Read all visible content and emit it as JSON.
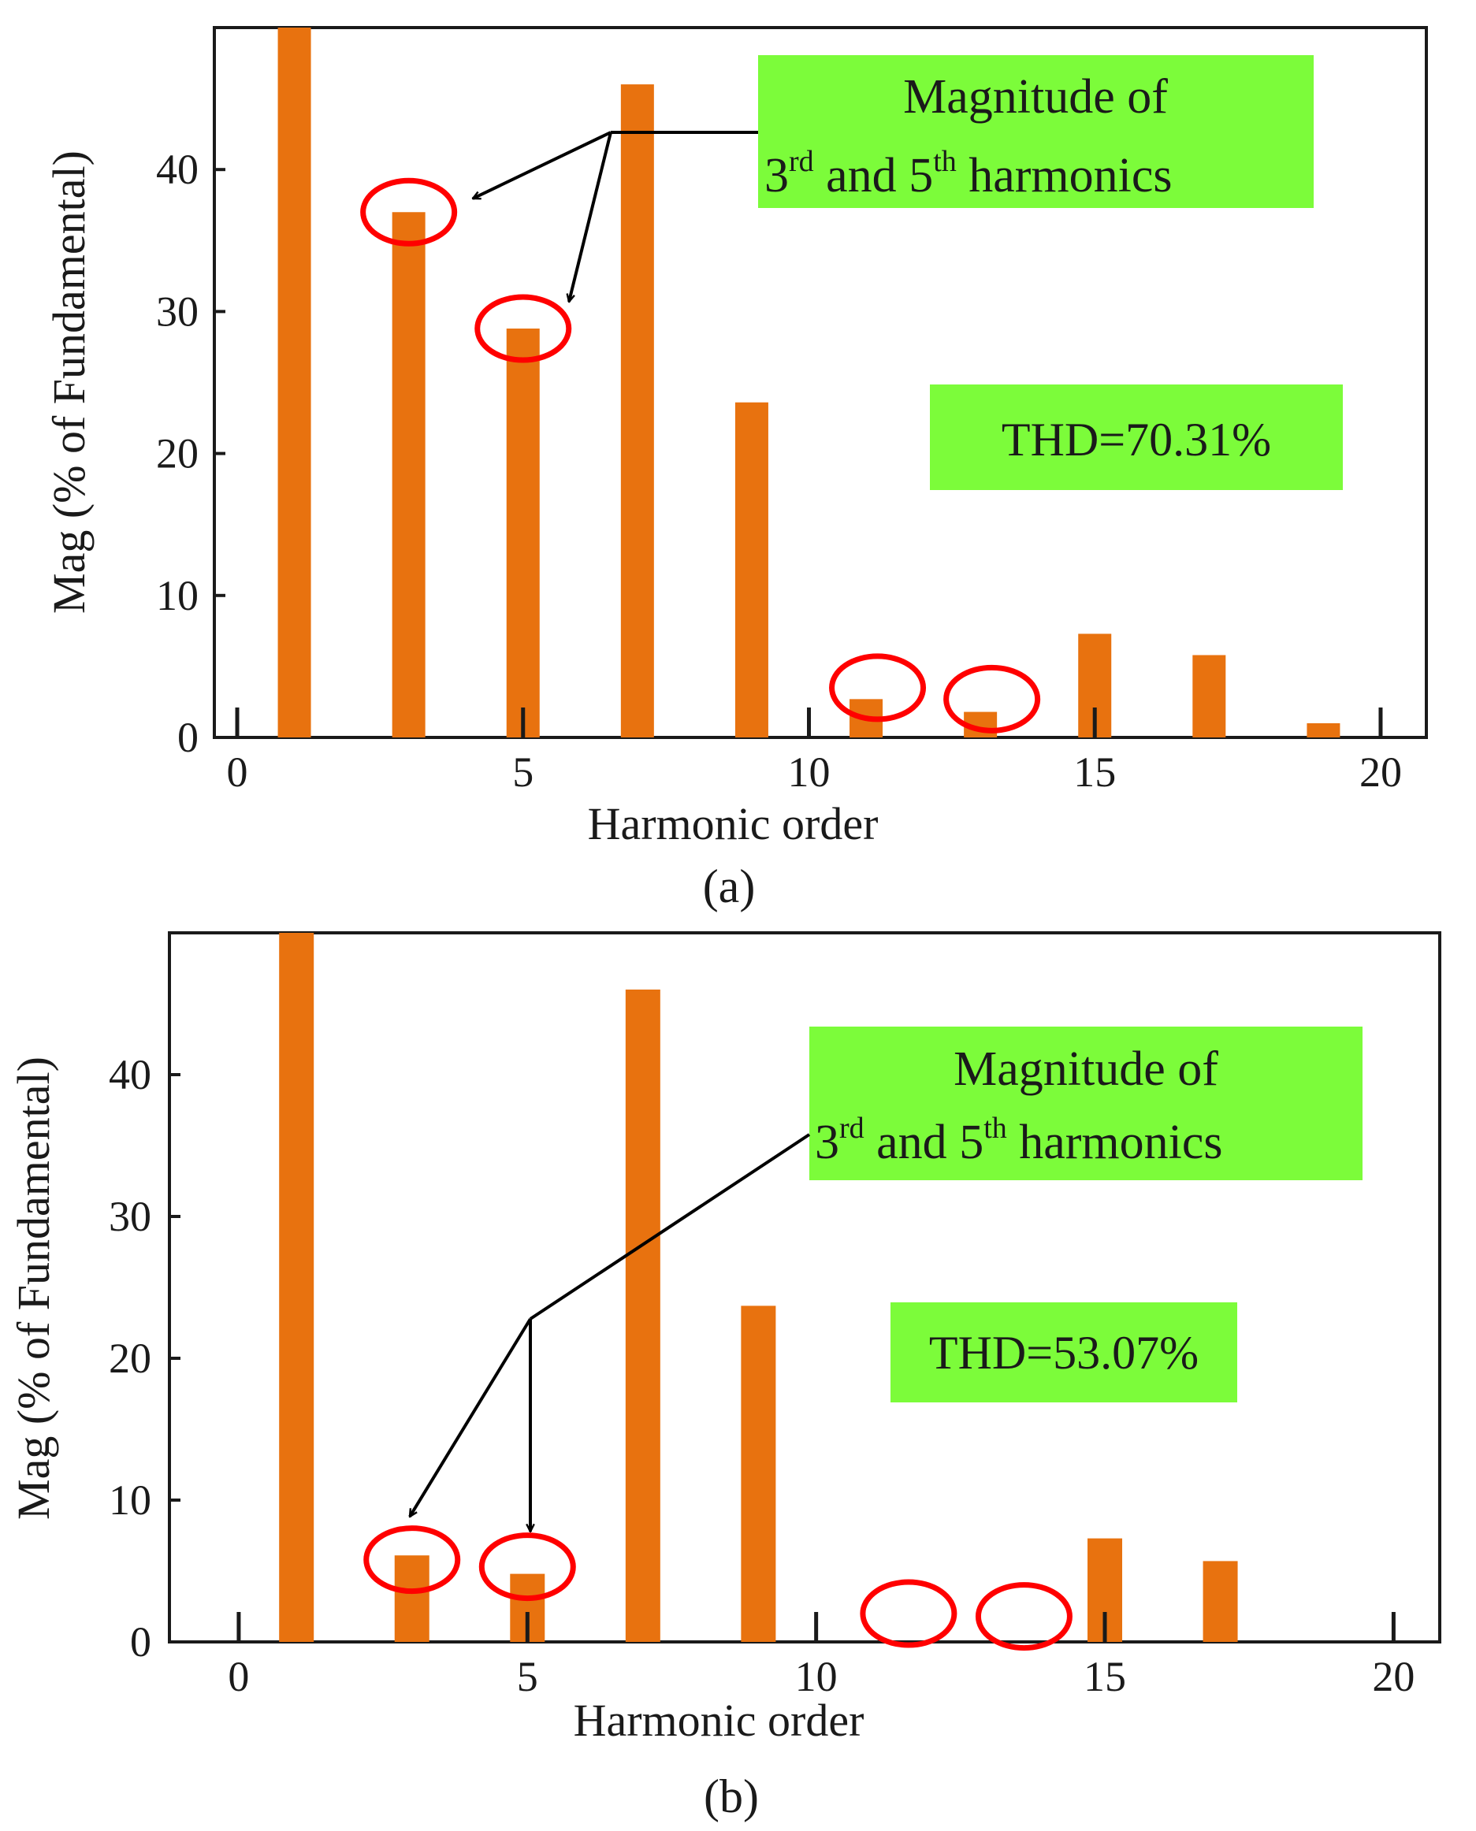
{
  "colors": {
    "bar": "#E8720F",
    "circle": "#FF0000",
    "label_bg": "#7CFC3A",
    "axis": "#1a1a1a"
  },
  "chart_data": [
    {
      "type": "bar",
      "caption": "(a)",
      "xlabel": "Harmonic order",
      "ylabel": "Mag (% of Fundamental)",
      "xlim": [
        -0.4,
        20.8
      ],
      "ylim": [
        0,
        50
      ],
      "xticks": [
        0,
        5,
        10,
        15,
        20
      ],
      "yticks": [
        0,
        10,
        20,
        30,
        40
      ],
      "bars": [
        {
          "x": 1,
          "y": 50
        },
        {
          "x": 3,
          "y": 37
        },
        {
          "x": 5,
          "y": 28.8
        },
        {
          "x": 7,
          "y": 46
        },
        {
          "x": 9,
          "y": 23.6
        },
        {
          "x": 11,
          "y": 2.7
        },
        {
          "x": 13,
          "y": 1.8
        },
        {
          "x": 15,
          "y": 7.3
        },
        {
          "x": 17,
          "y": 5.8
        },
        {
          "x": 19,
          "y": 1.0
        }
      ],
      "highlighted_harmonics": [
        3,
        5,
        11,
        13
      ],
      "annotation": {
        "line1": "Magnitude of",
        "n1": "3",
        "sup1": "rd",
        "mid": " and ",
        "n2": "5",
        "sup2": "th",
        "tail": " harmonics"
      },
      "thd": "THD=70.31%"
    },
    {
      "type": "bar",
      "caption": "(b)",
      "xlabel": "Harmonic order",
      "ylabel": "Mag (% of Fundamental)",
      "xlim": [
        -1.2,
        20.8
      ],
      "ylim": [
        0,
        50
      ],
      "xticks": [
        0,
        5,
        10,
        15,
        20
      ],
      "yticks": [
        0,
        10,
        20,
        30,
        40
      ],
      "bars": [
        {
          "x": 1,
          "y": 50
        },
        {
          "x": 3,
          "y": 6.1
        },
        {
          "x": 5,
          "y": 4.8
        },
        {
          "x": 7,
          "y": 46
        },
        {
          "x": 9,
          "y": 23.7
        },
        {
          "x": 15,
          "y": 7.3
        },
        {
          "x": 17,
          "y": 5.7
        }
      ],
      "highlighted_harmonics": [
        3,
        5,
        11,
        13
      ],
      "annotation": {
        "line1": "Magnitude of",
        "n1": "3",
        "sup1": "rd",
        "mid": " and ",
        "n2": "5",
        "sup2": "th",
        "tail": " harmonics"
      },
      "thd": "THD=53.07%"
    }
  ]
}
